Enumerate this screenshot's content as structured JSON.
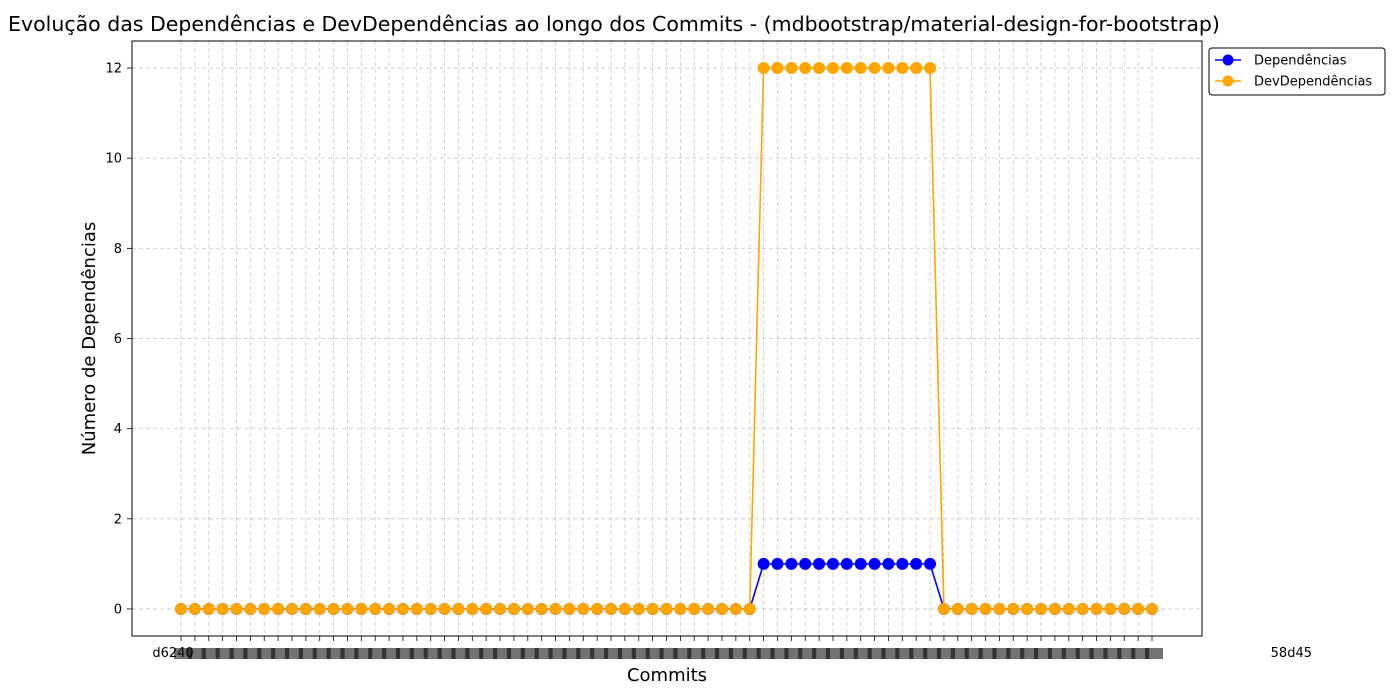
{
  "chart_data": {
    "type": "line",
    "title": "Evolução das Dependências e DevDependências ao longo dos Commits - (mdbootstrap/material-design-for-bootstrap)",
    "xlabel": "Commits",
    "ylabel": "Número de Dependências",
    "ylim": [
      -0.6,
      12.6
    ],
    "yticks": [
      0,
      2,
      4,
      6,
      8,
      10,
      12
    ],
    "grid": true,
    "legend_position": "outside-top-right",
    "x_first_label": "d6240",
    "x_last_label": "58d45",
    "series": [
      {
        "name": "Dependências",
        "color": "#0000ff",
        "values": [
          0,
          0,
          0,
          0,
          0,
          0,
          0,
          0,
          0,
          0,
          0,
          0,
          0,
          0,
          0,
          0,
          0,
          0,
          0,
          0,
          0,
          0,
          0,
          0,
          0,
          0,
          0,
          0,
          0,
          0,
          0,
          0,
          0,
          0,
          0,
          0,
          0,
          0,
          0,
          0,
          0,
          0,
          1,
          1,
          1,
          1,
          1,
          1,
          1,
          1,
          1,
          1,
          1,
          1,
          1,
          0,
          0,
          0,
          0,
          0,
          0,
          0,
          0,
          0,
          0,
          0,
          0,
          0,
          0,
          0,
          0
        ]
      },
      {
        "name": "DevDependências",
        "color": "#ffa500",
        "values": [
          0,
          0,
          0,
          0,
          0,
          0,
          0,
          0,
          0,
          0,
          0,
          0,
          0,
          0,
          0,
          0,
          0,
          0,
          0,
          0,
          0,
          0,
          0,
          0,
          0,
          0,
          0,
          0,
          0,
          0,
          0,
          0,
          0,
          0,
          0,
          0,
          0,
          0,
          0,
          0,
          0,
          0,
          12,
          12,
          12,
          12,
          12,
          12,
          12,
          12,
          12,
          12,
          12,
          12,
          12,
          0,
          0,
          0,
          0,
          0,
          0,
          0,
          0,
          0,
          0,
          0,
          0,
          0,
          0,
          0,
          0
        ]
      }
    ]
  }
}
